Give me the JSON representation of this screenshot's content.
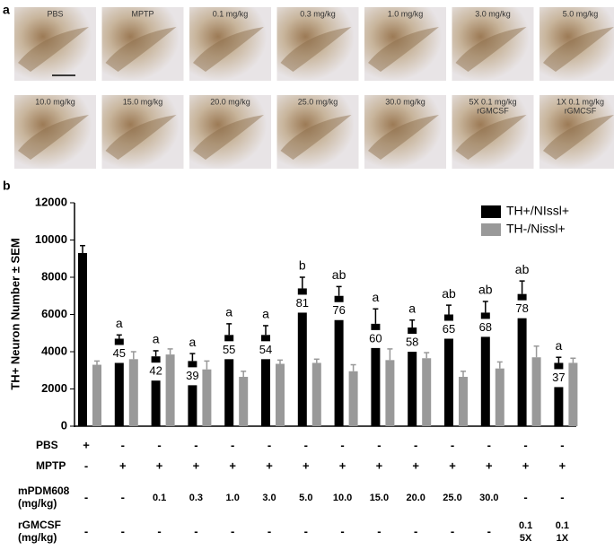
{
  "panel_a": {
    "label": "a",
    "images": [
      "PBS",
      "MPTP",
      "0.1 mg/kg",
      "0.3 mg/kg",
      "1.0 mg/kg",
      "3.0 mg/kg",
      "5.0 mg/kg",
      "10.0 mg/kg",
      "15.0 mg/kg",
      "20.0 mg/kg",
      "25.0 mg/kg",
      "30.0 mg/kg",
      [
        "5X 0.1 mg/kg",
        "rGMCSF"
      ],
      [
        "1X 0.1 mg/kg",
        "rGMCSF"
      ]
    ]
  },
  "chart_data": {
    "type": "bar",
    "panel_label": "b",
    "y_label": "TH+ Neuron Number ± SEM",
    "ylim": [
      0,
      12000
    ],
    "yticks": [
      0,
      2000,
      4000,
      6000,
      8000,
      10000,
      12000
    ],
    "legend": "top-right",
    "series": [
      {
        "name": "TH+/NIssl+",
        "color": "#000000",
        "values": [
          9300,
          4700,
          3750,
          3500,
          4900,
          4900,
          7400,
          7000,
          5500,
          5300,
          6000,
          6100,
          7100,
          3400
        ],
        "errors": [
          400,
          200,
          300,
          400,
          600,
          500,
          600,
          500,
          800,
          400,
          500,
          600,
          700,
          300
        ]
      },
      {
        "name": "TH-/Nissl+",
        "color": "#999999",
        "values": [
          3300,
          3600,
          3850,
          3050,
          2650,
          3350,
          3400,
          2950,
          3550,
          3650,
          2650,
          3100,
          3700,
          3400
        ],
        "errors": [
          200,
          400,
          300,
          450,
          300,
          200,
          200,
          350,
          600,
          300,
          300,
          350,
          600,
          250
        ]
      }
    ],
    "percent_labels": [
      null,
      45,
      42,
      39,
      55,
      54,
      81,
      76,
      60,
      58,
      65,
      68,
      78,
      37
    ],
    "letters": [
      null,
      "a",
      "a",
      "a",
      "a",
      "a",
      "b",
      "ab",
      "a",
      "a",
      "ab",
      "ab",
      "ab",
      "a"
    ],
    "conditions": [
      {
        "label": [
          "PBS"
        ],
        "cells": [
          "+",
          "-",
          "-",
          "-",
          "-",
          "-",
          "-",
          "-",
          "-",
          "-",
          "-",
          "-",
          "-",
          "-"
        ]
      },
      {
        "label": [
          "MPTP"
        ],
        "cells": [
          "-",
          "+",
          "+",
          "+",
          "+",
          "+",
          "+",
          "+",
          "+",
          "+",
          "+",
          "+",
          "+",
          "+"
        ]
      },
      {
        "label": [
          "mPDM608",
          "(mg/kg)"
        ],
        "cells": [
          "-",
          "-",
          "0.1",
          "0.3",
          "1.0",
          "3.0",
          "5.0",
          "10.0",
          "15.0",
          "20.0",
          "25.0",
          "30.0",
          "-",
          "-"
        ]
      },
      {
        "label": [
          "rGMCSF",
          "(mg/kg)"
        ],
        "cells": [
          "-",
          "-",
          "-",
          "-",
          "-",
          "-",
          "-",
          "-",
          "-",
          "-",
          "-",
          "-",
          [
            "0.1",
            "5X"
          ],
          [
            "0.1",
            "1X"
          ]
        ]
      }
    ]
  }
}
